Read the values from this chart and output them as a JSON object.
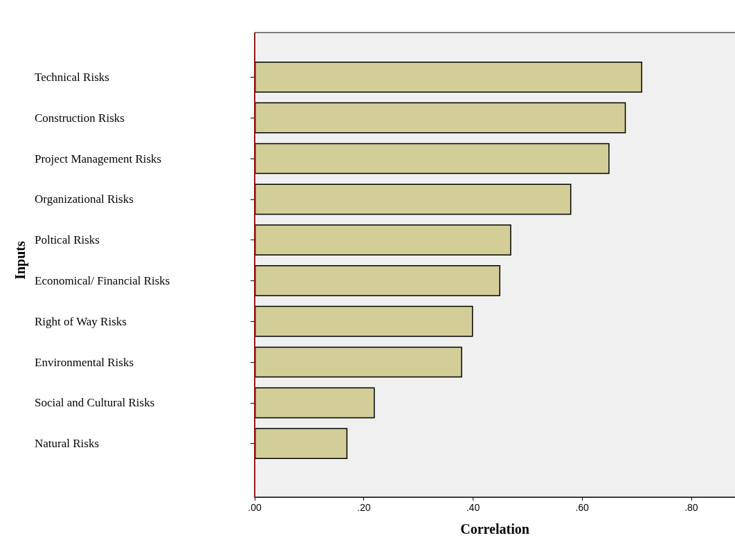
{
  "chart_data": {
    "type": "bar",
    "orientation": "horizontal",
    "xlabel": "Correlation",
    "ylabel": "Inputs",
    "categories": [
      "Technical Risks",
      "Construction Risks",
      "Project Management Risks",
      "Organizational Risks",
      "Poltical Risks",
      "Economical/ Financial Risks",
      "Right of Way Risks",
      "Environmental Risks",
      "Social and Cultural Risks",
      "Natural Risks"
    ],
    "values": [
      0.71,
      0.68,
      0.65,
      0.58,
      0.47,
      0.45,
      0.4,
      0.38,
      0.22,
      0.17
    ],
    "color": "#d3ce98",
    "xlim": [
      0,
      0.88
    ],
    "xticks": [
      {
        "value": 0,
        "label": ".00"
      },
      {
        "value": 0.2,
        "label": ".20"
      },
      {
        "value": 0.4,
        "label": ".40"
      },
      {
        "value": 0.6,
        "label": ".60"
      },
      {
        "value": 0.8,
        "label": ".80"
      }
    ],
    "grid": false
  }
}
